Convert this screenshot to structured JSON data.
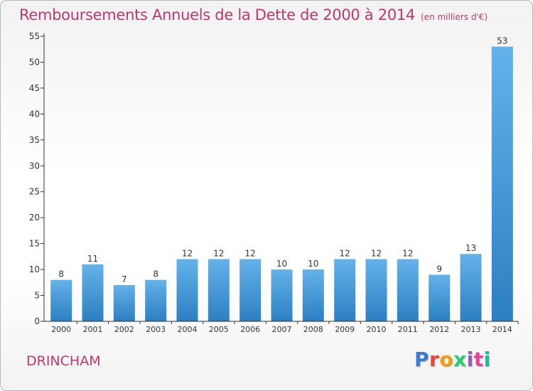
{
  "header": {
    "title": "Remboursements Annuels de la Dette de 2000 à 2014",
    "subtitle": "(en milliers d'€)"
  },
  "footer": {
    "commune": "DRINCHAM",
    "brand": "Proxiti",
    "brand_colors": [
      "#3a7bd5",
      "#e8473f",
      "#f39c12",
      "#2ecc71",
      "#9b59b6",
      "#e84393",
      "#1abc9c"
    ]
  },
  "chart_data": {
    "type": "bar",
    "title": "Remboursements Annuels de la Dette de 2000 à 2014",
    "categories": [
      "2000",
      "2001",
      "2002",
      "2003",
      "2004",
      "2005",
      "2006",
      "2007",
      "2008",
      "2009",
      "2010",
      "2011",
      "2012",
      "2013",
      "2014"
    ],
    "values": [
      8,
      11,
      7,
      8,
      12,
      12,
      12,
      10,
      10,
      12,
      12,
      12,
      9,
      13,
      53
    ],
    "ylim": [
      0,
      55
    ],
    "yticks": [
      0,
      5,
      10,
      15,
      20,
      25,
      30,
      35,
      40,
      45,
      50,
      55
    ],
    "grid": false,
    "colors": {
      "bar_light": "#64b2ea",
      "bar_dark": "#2c7fc1",
      "axis": "#333333",
      "text": "#333333"
    }
  }
}
